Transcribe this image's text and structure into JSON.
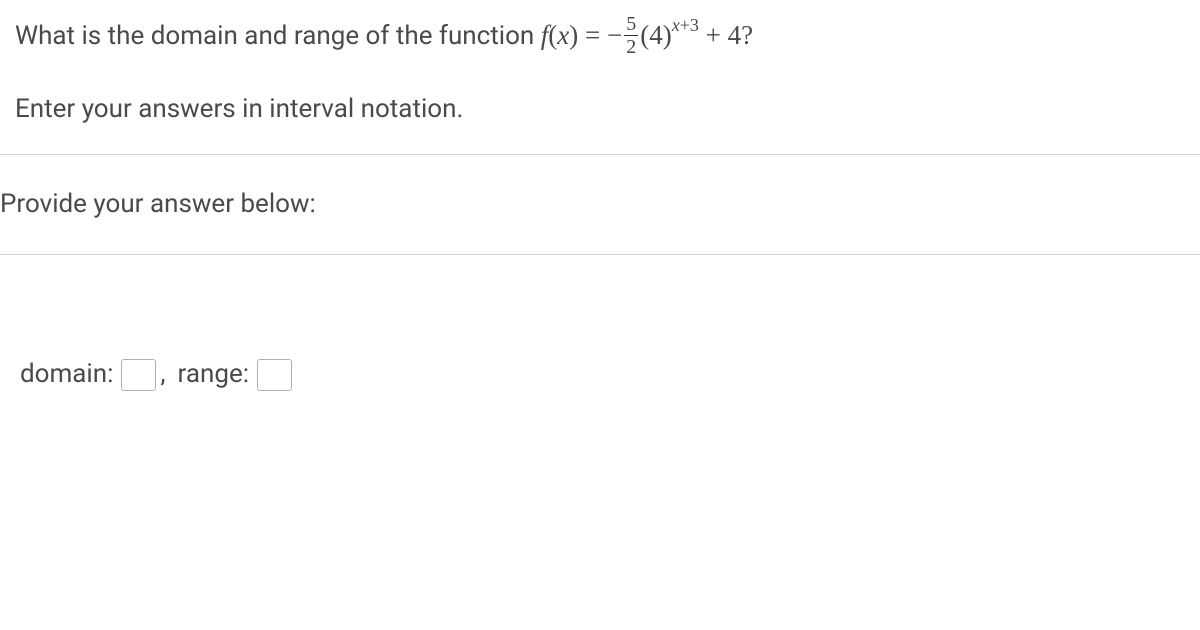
{
  "question": {
    "prefix_text": "What is the domain and range of the function ",
    "function_notation": "f(x) = ",
    "minus_sign": "−",
    "fraction_num": "5",
    "fraction_den": "2",
    "base_open": "(4)",
    "exponent": "x+3",
    "tail": " + 4?",
    "instruction": "Enter your answers in interval notation."
  },
  "prompt": {
    "label": "Provide your answer below:"
  },
  "answers": {
    "domain_label": "domain:",
    "range_label": "range:",
    "separator": ","
  },
  "style": {
    "text_color": "#4a4a4a",
    "divider_color": "#d0d0d0",
    "input_border": "#b0b0b0",
    "background": "#ffffff",
    "body_fontsize": 26
  }
}
